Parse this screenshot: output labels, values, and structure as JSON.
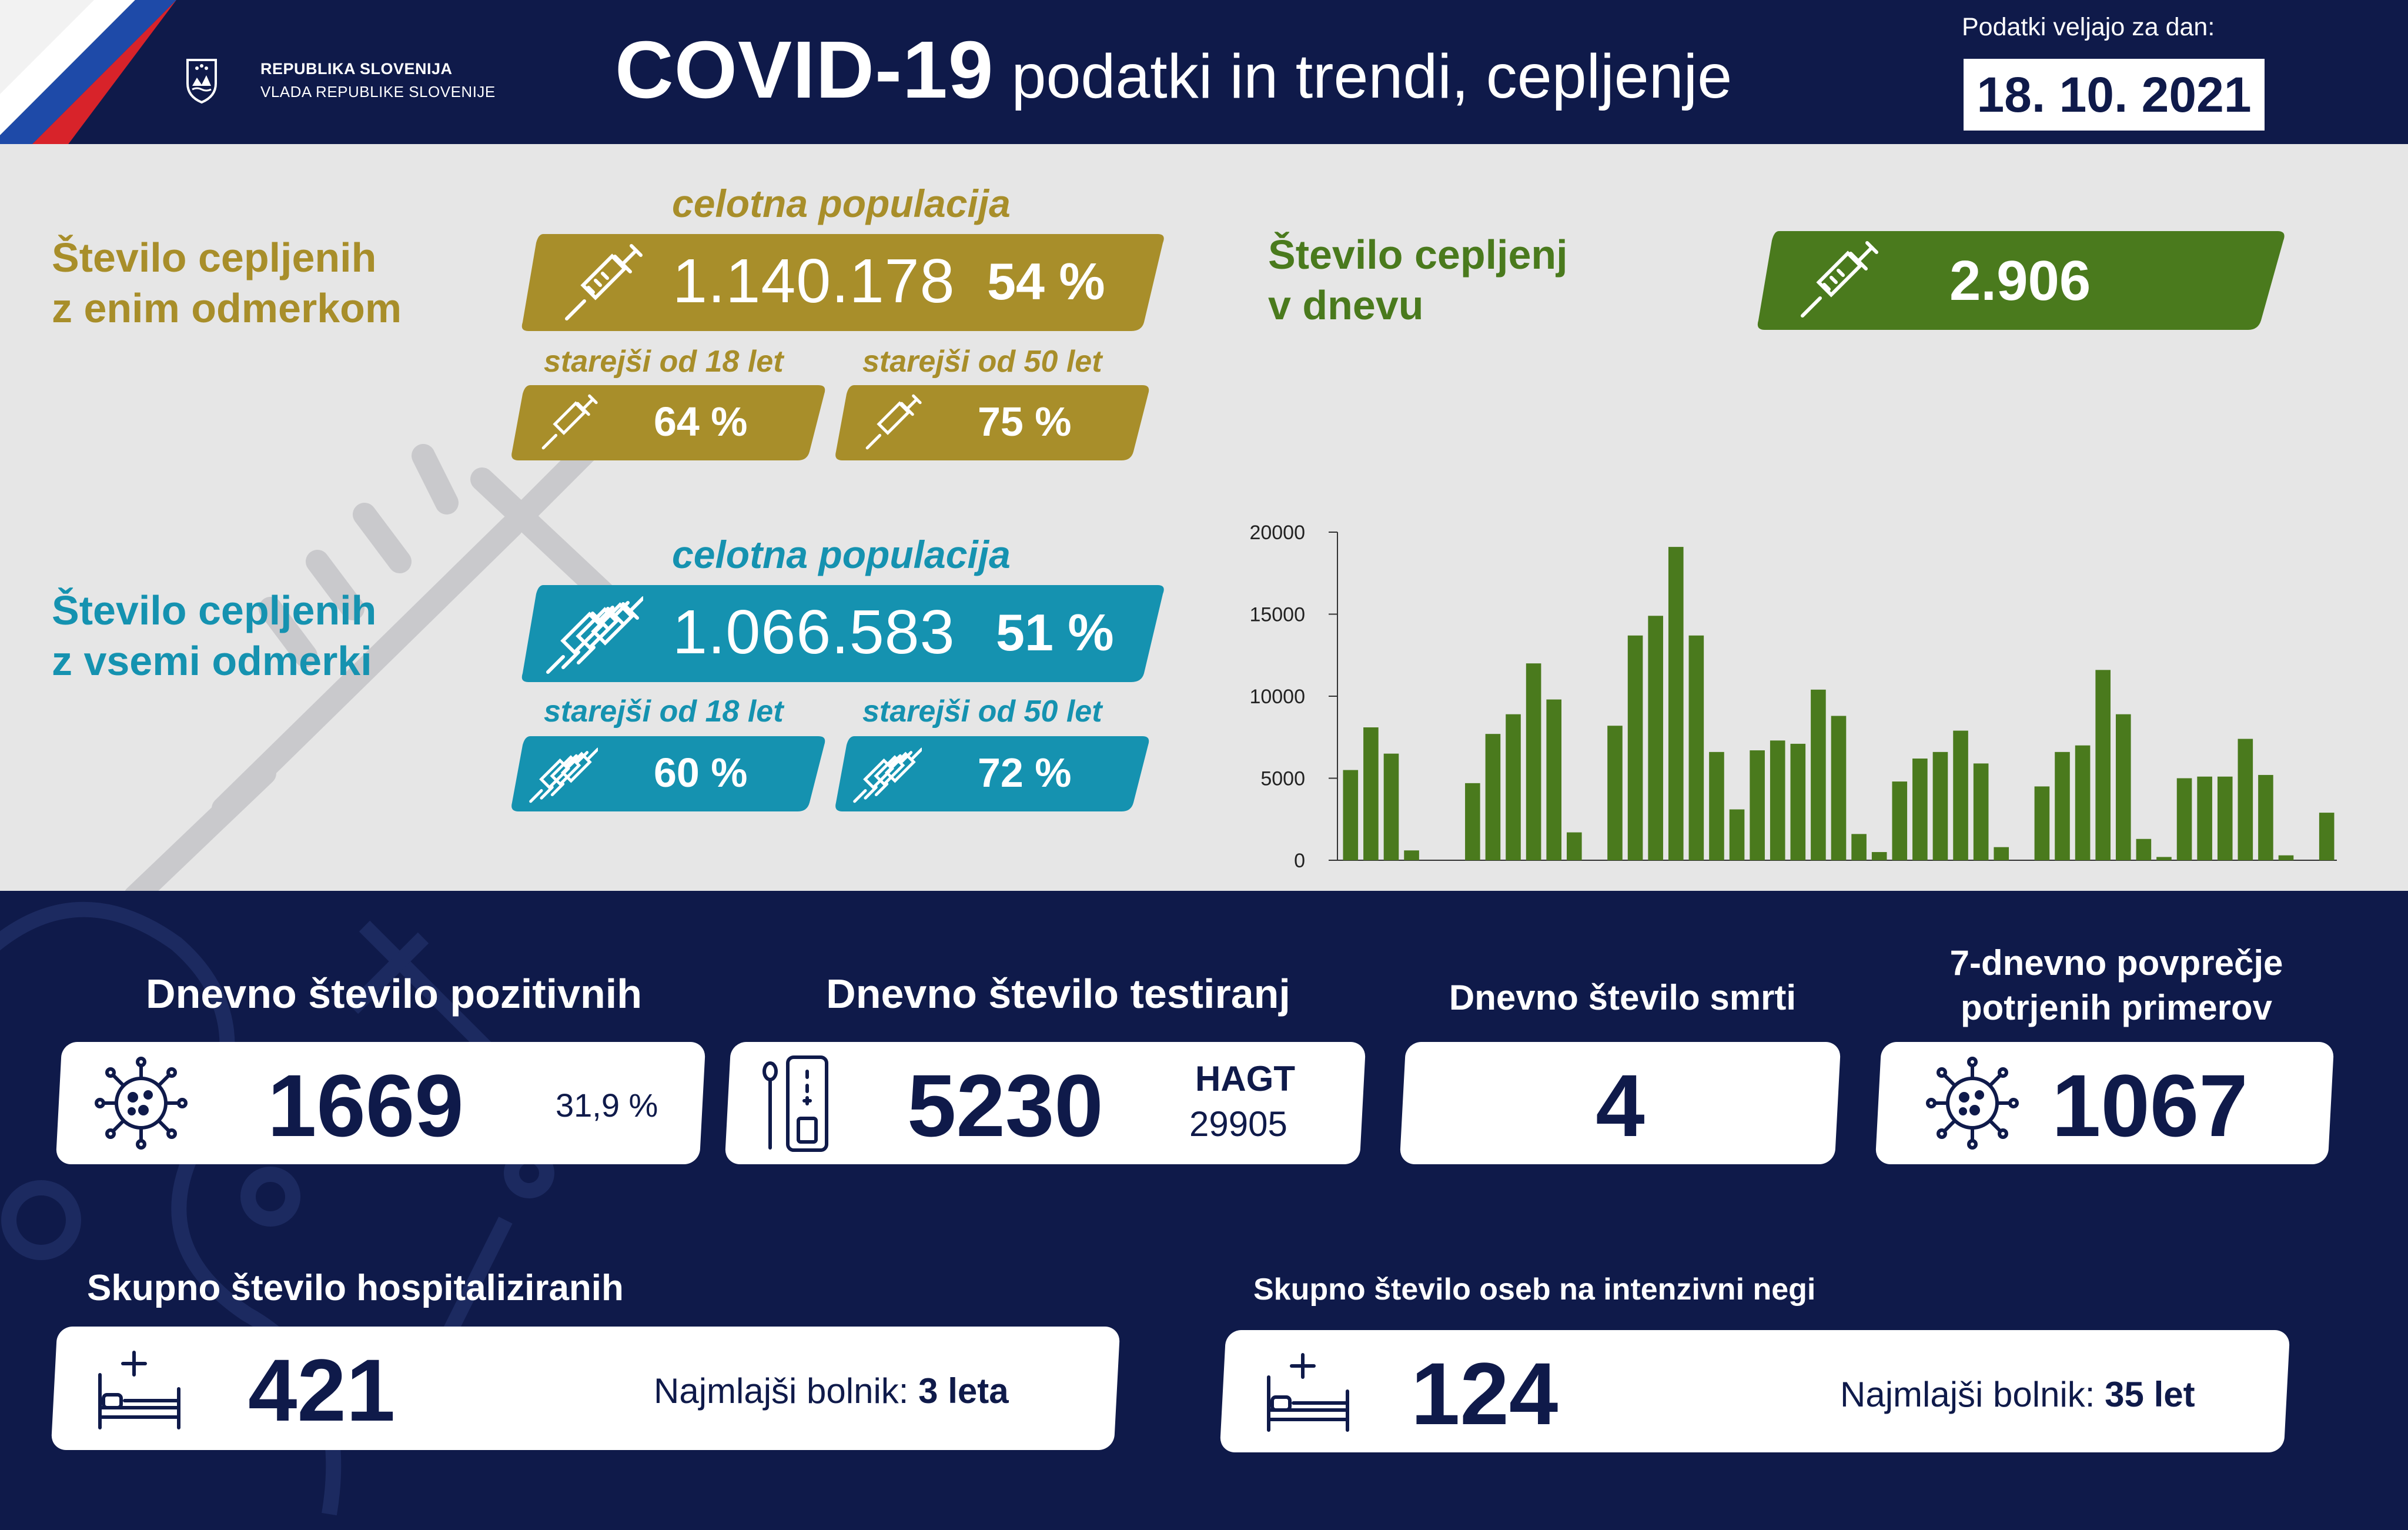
{
  "header": {
    "gov_line1": "REPUBLIKA SLOVENIJA",
    "gov_line2": "VLADA REPUBLIKE SLOVENIJE",
    "title_main": "COVID-19",
    "title_sub": "podatki in trendi, cepljenje",
    "date_label": "Podatki veljajo za dan:",
    "date_value": "18. 10. 2021"
  },
  "one_dose": {
    "title_line1": "Število cepljenih",
    "title_line2": "z enim odmerkom",
    "total_label": "celotna populacija",
    "total_value": "1.140.178",
    "total_pct": "54 %",
    "age18_label": "starejši od 18 let",
    "age18_pct": "64 %",
    "age50_label": "starejši od 50 let",
    "age50_pct": "75 %",
    "icon": "syringe-icon",
    "color": "#a88e2a"
  },
  "all_doses": {
    "title_line1": "Število cepljenih",
    "title_line2": "z vsemi odmerki",
    "total_label": "celotna populacija",
    "total_value": "1.066.583",
    "total_pct": "51 %",
    "age18_label": "starejši od 18 let",
    "age18_pct": "60 %",
    "age50_label": "starejši od 50 let",
    "age50_pct": "72 %",
    "icon": "syringes-icon",
    "color": "#1592b0"
  },
  "daily_vax": {
    "title_line1": "Število cepljenj",
    "title_line2": "v dnevu",
    "value": "2.906",
    "icon": "syringe-icon",
    "color": "#4a7a1d"
  },
  "chart_data": {
    "type": "bar",
    "title": "",
    "xlabel": "",
    "ylabel": "",
    "ylim": [
      0,
      20000
    ],
    "yticks": [
      0,
      5000,
      10000,
      15000,
      20000
    ],
    "color": "#4a7a1d",
    "values": [
      5500,
      8100,
      6500,
      600,
      0,
      0,
      4700,
      7700,
      8900,
      12000,
      9800,
      1700,
      0,
      8200,
      13700,
      14900,
      19100,
      13700,
      6600,
      3100,
      6700,
      7300,
      7100,
      10400,
      8800,
      1600,
      500,
      4800,
      6200,
      6600,
      7900,
      5900,
      800,
      0,
      4500,
      6600,
      7000,
      11600,
      8900,
      1300,
      200,
      5000,
      5100,
      5100,
      7400,
      5200,
      300,
      0,
      2900
    ]
  },
  "cards": {
    "positive": {
      "title": "Dnevno število pozitivnih",
      "value": "1669",
      "pct": "31,9 %",
      "icon": "virus-icon"
    },
    "tests": {
      "title": "Dnevno število testiranj",
      "value": "5230",
      "hagt_label": "HAGT",
      "hagt_value": "29905",
      "icon": "test-kit-icon"
    },
    "deaths": {
      "title": "Dnevno število smrti",
      "value": "4"
    },
    "avg7": {
      "title_line1": "7-dnevno povprečje",
      "title_line2": "potrjenih primerov",
      "value": "1067",
      "icon": "virus-icon"
    },
    "hospital": {
      "title": "Skupno število hospitaliziranih",
      "value": "421",
      "youngest_label": "Najmlajši bolnik:",
      "youngest_value": "3 leta",
      "icon": "hospital-bed-icon"
    },
    "icu": {
      "title": "Skupno število oseb na intenzivni negi",
      "value": "124",
      "youngest_label": "Najmlajši bolnik:",
      "youngest_value": "35 let",
      "icon": "hospital-bed-icon"
    }
  }
}
